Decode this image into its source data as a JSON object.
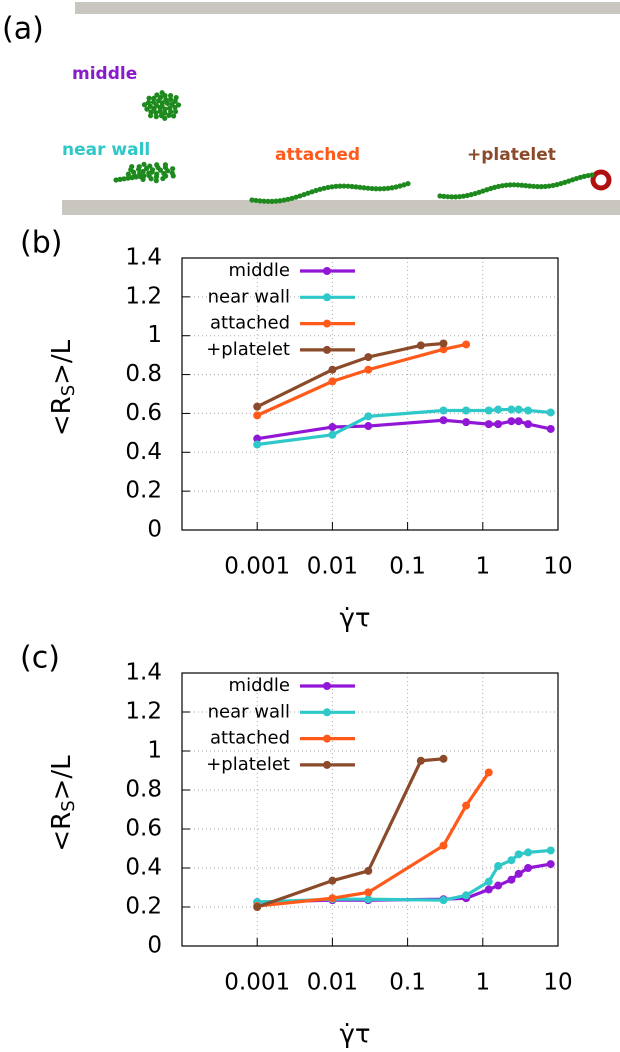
{
  "panel_a": {
    "label": "(a)",
    "chain_labels": [
      "middle",
      "near wall",
      "attached",
      "+platelet"
    ]
  },
  "chart_data": [
    {
      "type": "line",
      "panel_label": "(b)",
      "x_label": "γ̇τ",
      "y_label": [
        "<R",
        "S",
        ">/L"
      ],
      "log_x": true,
      "xlim": [
        0.0001,
        10
      ],
      "xticks": [
        0.001,
        0.01,
        0.1,
        1,
        10
      ],
      "ylim": [
        0,
        1.4
      ],
      "yticks": [
        0,
        0.2,
        0.4,
        0.6,
        0.8,
        1,
        1.2,
        1.4
      ],
      "grid": true,
      "legend": "top-left",
      "series": [
        {
          "name": "middle",
          "color": "#9116d6",
          "x": [
            0.001,
            0.01,
            0.03,
            0.3,
            0.6,
            1.2,
            1.6,
            2.4,
            3,
            4,
            8
          ],
          "values": [
            0.47,
            0.53,
            0.535,
            0.565,
            0.555,
            0.545,
            0.545,
            0.56,
            0.56,
            0.545,
            0.52
          ]
        },
        {
          "name": "near wall",
          "color": "#2ec8c8",
          "x": [
            0.001,
            0.01,
            0.03,
            0.3,
            0.6,
            1.2,
            1.6,
            2.4,
            3,
            4,
            8
          ],
          "values": [
            0.44,
            0.49,
            0.585,
            0.615,
            0.615,
            0.615,
            0.62,
            0.62,
            0.62,
            0.615,
            0.605
          ]
        },
        {
          "name": "attached",
          "color": "#ff5a1a",
          "x": [
            0.001,
            0.01,
            0.03,
            0.3,
            0.6
          ],
          "values": [
            0.59,
            0.765,
            0.825,
            0.93,
            0.955
          ]
        },
        {
          "name": "+platelet",
          "color": "#8b4a2a",
          "x": [
            0.001,
            0.01,
            0.03,
            0.15,
            0.3
          ],
          "values": [
            0.635,
            0.825,
            0.89,
            0.95,
            0.96
          ]
        }
      ]
    },
    {
      "type": "line",
      "panel_label": "(c)",
      "x_label": "γ̇τ",
      "y_label": [
        "<R",
        "S",
        ">/L"
      ],
      "log_x": true,
      "xlim": [
        0.0001,
        10
      ],
      "xticks": [
        0.001,
        0.01,
        0.1,
        1,
        10
      ],
      "ylim": [
        0,
        1.4
      ],
      "yticks": [
        0,
        0.2,
        0.4,
        0.6,
        0.8,
        1,
        1.2,
        1.4
      ],
      "grid": true,
      "legend": "top-left",
      "series": [
        {
          "name": "middle",
          "color": "#9116d6",
          "x": [
            0.001,
            0.01,
            0.03,
            0.3,
            0.6,
            1.2,
            1.6,
            2.4,
            3,
            4,
            8
          ],
          "values": [
            0.225,
            0.235,
            0.235,
            0.24,
            0.245,
            0.29,
            0.31,
            0.34,
            0.37,
            0.4,
            0.42
          ]
        },
        {
          "name": "near wall",
          "color": "#2ec8c8",
          "x": [
            0.001,
            0.01,
            0.03,
            0.3,
            0.6,
            1.2,
            1.6,
            2.4,
            3,
            4,
            8
          ],
          "values": [
            0.225,
            0.24,
            0.24,
            0.235,
            0.26,
            0.33,
            0.41,
            0.44,
            0.47,
            0.48,
            0.49
          ]
        },
        {
          "name": "attached",
          "color": "#ff5a1a",
          "x": [
            0.001,
            0.01,
            0.03,
            0.3,
            0.6,
            1.2
          ],
          "values": [
            0.205,
            0.245,
            0.275,
            0.515,
            0.72,
            0.89
          ]
        },
        {
          "name": "+platelet",
          "color": "#8b4a2a",
          "x": [
            0.001,
            0.01,
            0.03,
            0.15,
            0.3
          ],
          "values": [
            0.2,
            0.335,
            0.385,
            0.95,
            0.96
          ]
        }
      ]
    }
  ]
}
